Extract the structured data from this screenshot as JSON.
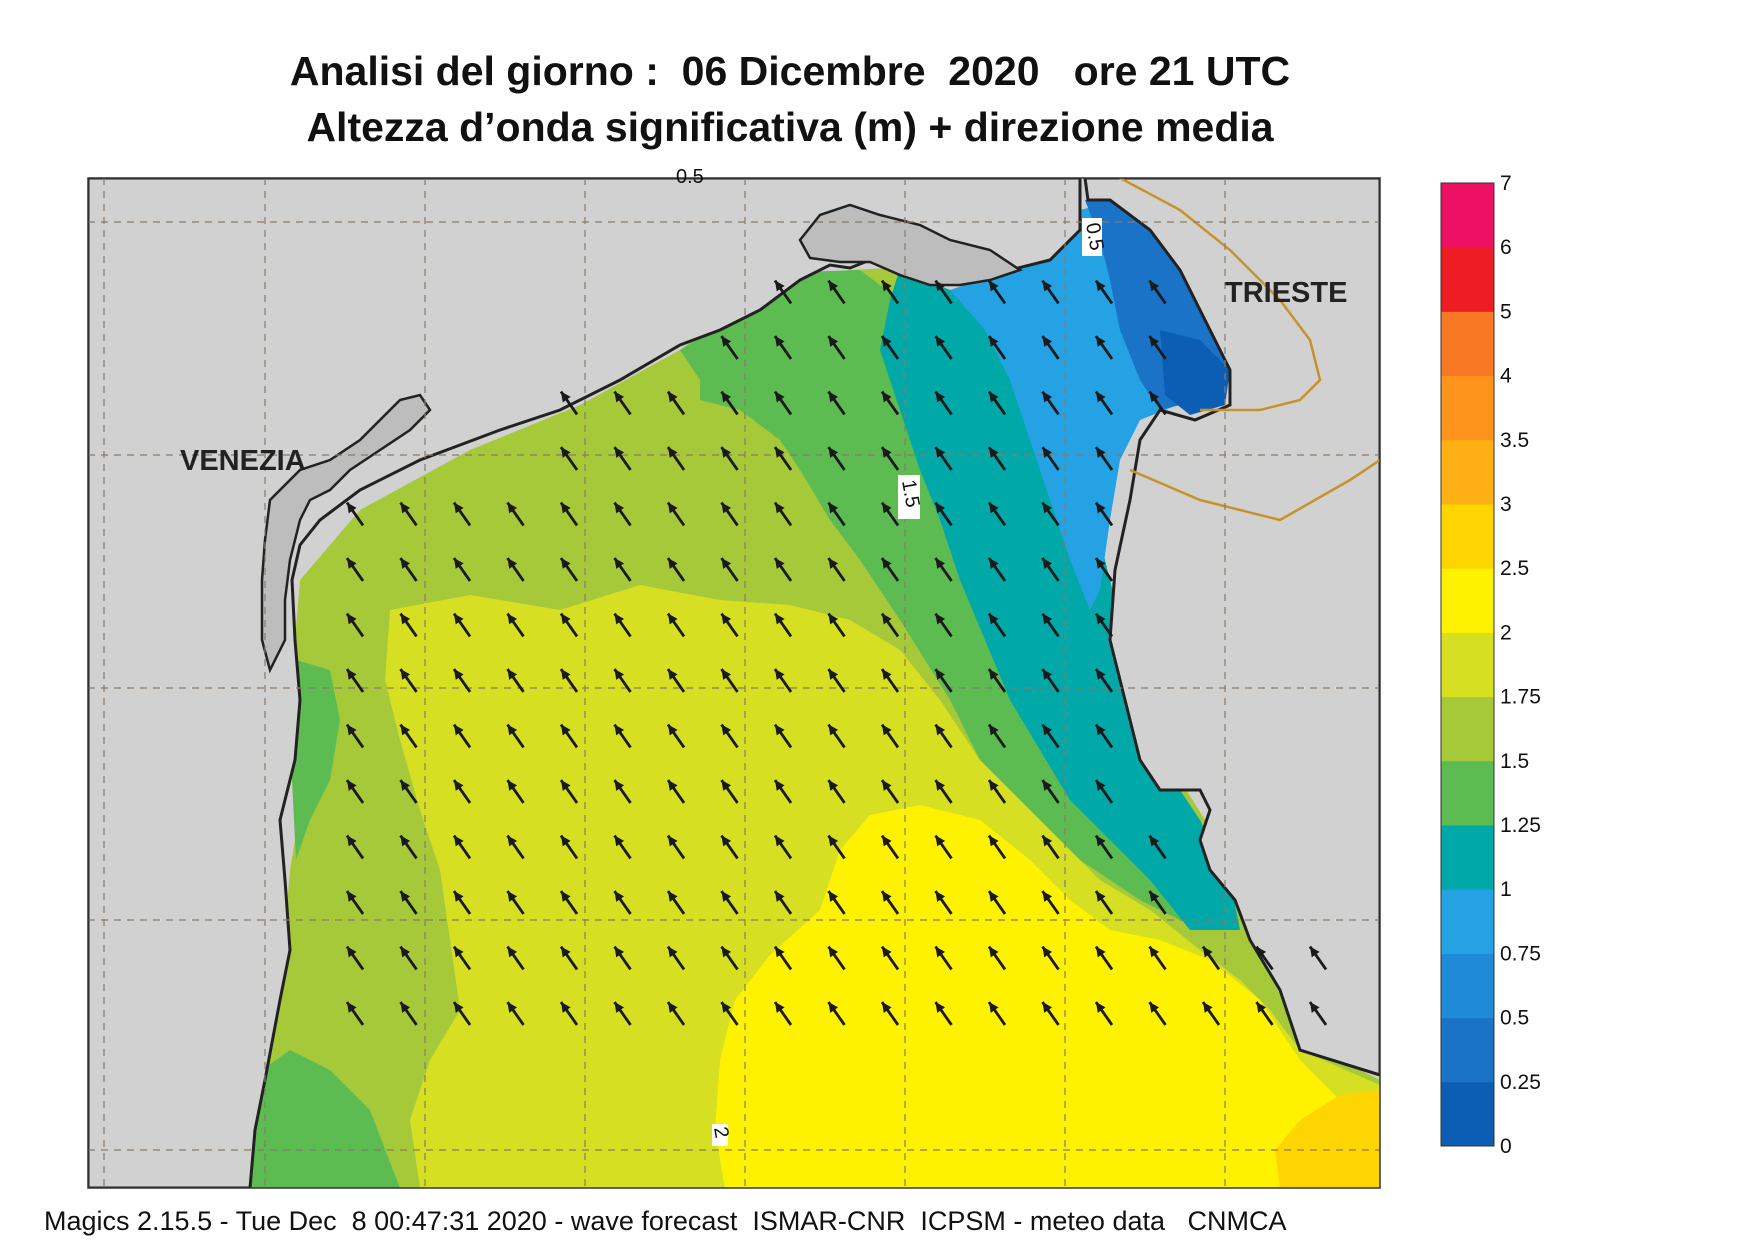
{
  "title": {
    "line1": "Analisi del giorno :  06 Dicembre  2020   ore 21 UTC",
    "line2": "Altezza d’onda significativa (m) + direzione media"
  },
  "map": {
    "cities": [
      "VENEZIA",
      "TRIESTE"
    ],
    "contour_labels": [
      "0.5",
      "1.5",
      "2",
      "0.5"
    ]
  },
  "colorbar": {
    "levels": [
      "0",
      "0.25",
      "0.5",
      "0.75",
      "1",
      "1.25",
      "1.5",
      "1.75",
      "2",
      "2.5",
      "3",
      "3.5",
      "4",
      "5",
      "6",
      "7"
    ],
    "colors": [
      "#0b5eb3",
      "#1a73c7",
      "#1f8ad8",
      "#24a2e4",
      "#00a8a8",
      "#5cbc52",
      "#a6c93a",
      "#d6df22",
      "#fff200",
      "#ffd500",
      "#ffb114",
      "#ff941c",
      "#f97823",
      "#ee1d24",
      "#ec1163"
    ]
  },
  "wave_direction": {
    "mean_direction": "NW",
    "arrow_icon": "arrow-nw-icon"
  },
  "footer": "Magics 2.15.5 - Tue Dec  8 00:47:31 2020 - wave forecast  ISMAR-CNR  ICPSM - meteo data   CNMCA"
}
